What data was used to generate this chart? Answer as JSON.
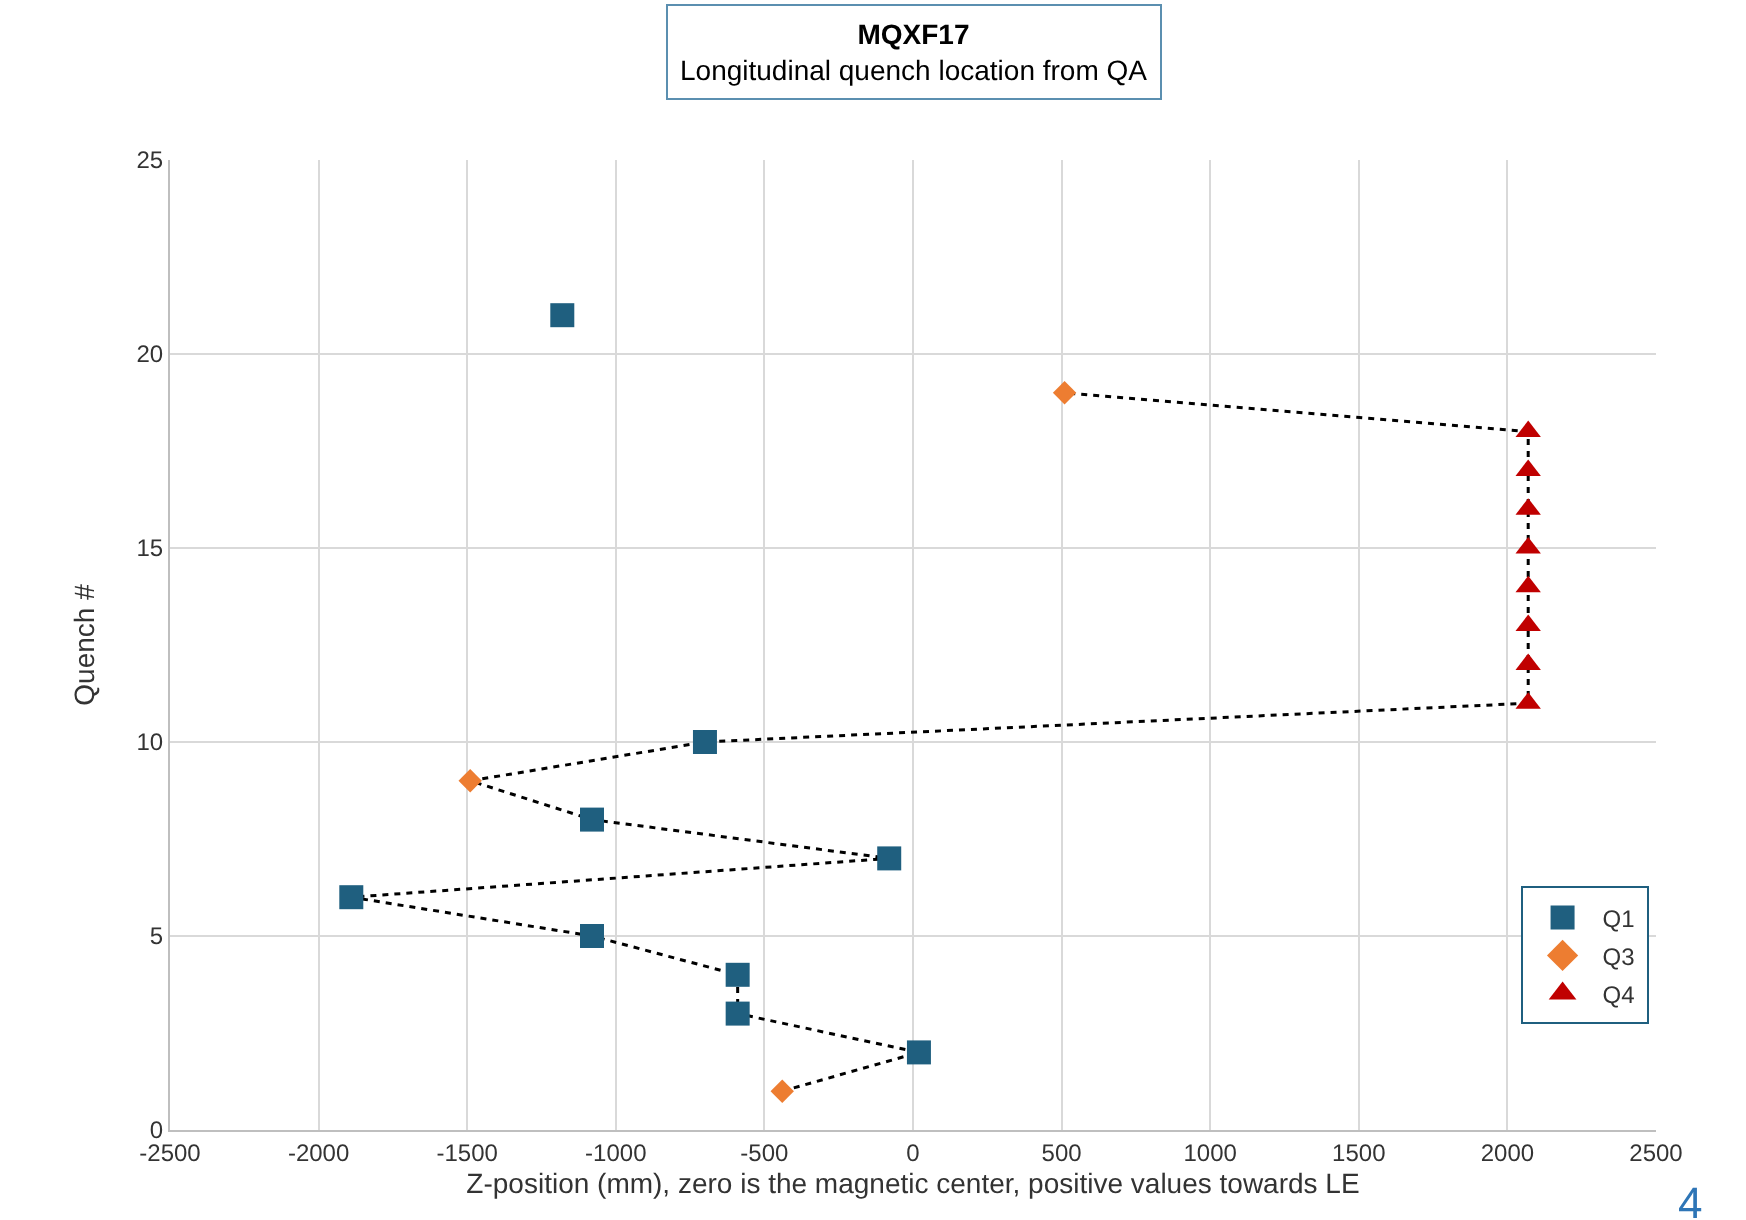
{
  "chart_data": {
    "type": "scatter",
    "title": "MQXF17",
    "subtitle": "Longitudinal quench location from QA",
    "xlabel": "Z-position (mm), zero is the magnetic center, positive values towards LE",
    "ylabel": "Quench #",
    "xlim": [
      -2500,
      2500
    ],
    "xticks": [
      -2500,
      -2000,
      -1500,
      -1000,
      -500,
      0,
      500,
      1000,
      1500,
      2000,
      2500
    ],
    "ylim": [
      0,
      25
    ],
    "yticks": [
      0,
      5,
      10,
      15,
      20,
      25
    ],
    "grid": true,
    "legend": "right",
    "series": [
      {
        "type": "line",
        "color": "#000000",
        "line_style": "dotted",
        "marker": "none",
        "x": [
          -440,
          20,
          -590,
          -590,
          -1080,
          -1890,
          -80,
          -1080,
          -1490,
          -700,
          2070,
          2070,
          2070,
          2070,
          2070,
          2070,
          2070,
          2070,
          510
        ],
        "values": [
          1,
          2,
          3,
          4,
          5,
          6,
          7,
          8,
          9,
          10,
          11,
          12,
          13,
          14,
          15,
          16,
          17,
          18,
          19
        ]
      },
      {
        "name": "Q1",
        "color": "#1f5f7f",
        "marker": "square",
        "x": [
          20,
          -590,
          -590,
          -1080,
          -1890,
          -80,
          -1080,
          -700,
          -1180
        ],
        "values": [
          2,
          3,
          4,
          5,
          6,
          7,
          8,
          10,
          21
        ]
      },
      {
        "name": "Q3",
        "color": "#ed7d31",
        "marker": "diamond",
        "x": [
          -440,
          -1490,
          510
        ],
        "values": [
          1,
          9,
          19
        ]
      },
      {
        "name": "Q4",
        "color": "#c00000",
        "marker": "triangle",
        "x": [
          2070,
          2070,
          2070,
          2070,
          2070,
          2070,
          2070,
          2070
        ],
        "values": [
          11,
          12,
          13,
          14,
          15,
          16,
          17,
          18
        ]
      }
    ],
    "annotations": [
      "4"
    ]
  }
}
